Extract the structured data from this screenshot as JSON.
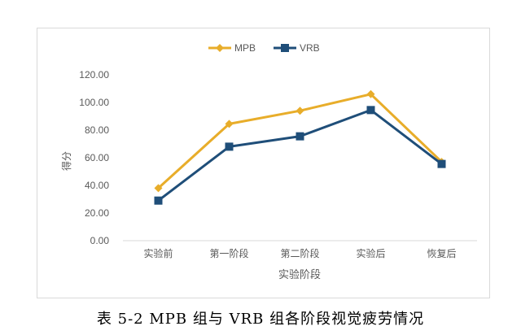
{
  "chart_data": {
    "type": "line",
    "categories": [
      "实验前",
      "第一阶段",
      "第二阶段",
      "实验后",
      "恢复后"
    ],
    "series": [
      {
        "name": "MPB",
        "values": [
          38,
          84.5,
          94,
          106,
          57
        ],
        "color": "#e8ad2a",
        "marker": "diamond"
      },
      {
        "name": "VRB",
        "values": [
          29,
          68,
          75.5,
          94.5,
          55.5
        ],
        "color": "#1f4e79",
        "marker": "square"
      }
    ],
    "ylim": [
      0,
      120
    ],
    "yticks": [
      "0.00",
      "20.00",
      "40.00",
      "60.00",
      "80.00",
      "100.00",
      "120.00"
    ],
    "ylabel": "得分",
    "xlabel": "实验阶段",
    "legend_position": "top",
    "grid": false
  },
  "caption": "表 5-2 MPB 组与 VRB 组各阶段视觉疲劳情况"
}
